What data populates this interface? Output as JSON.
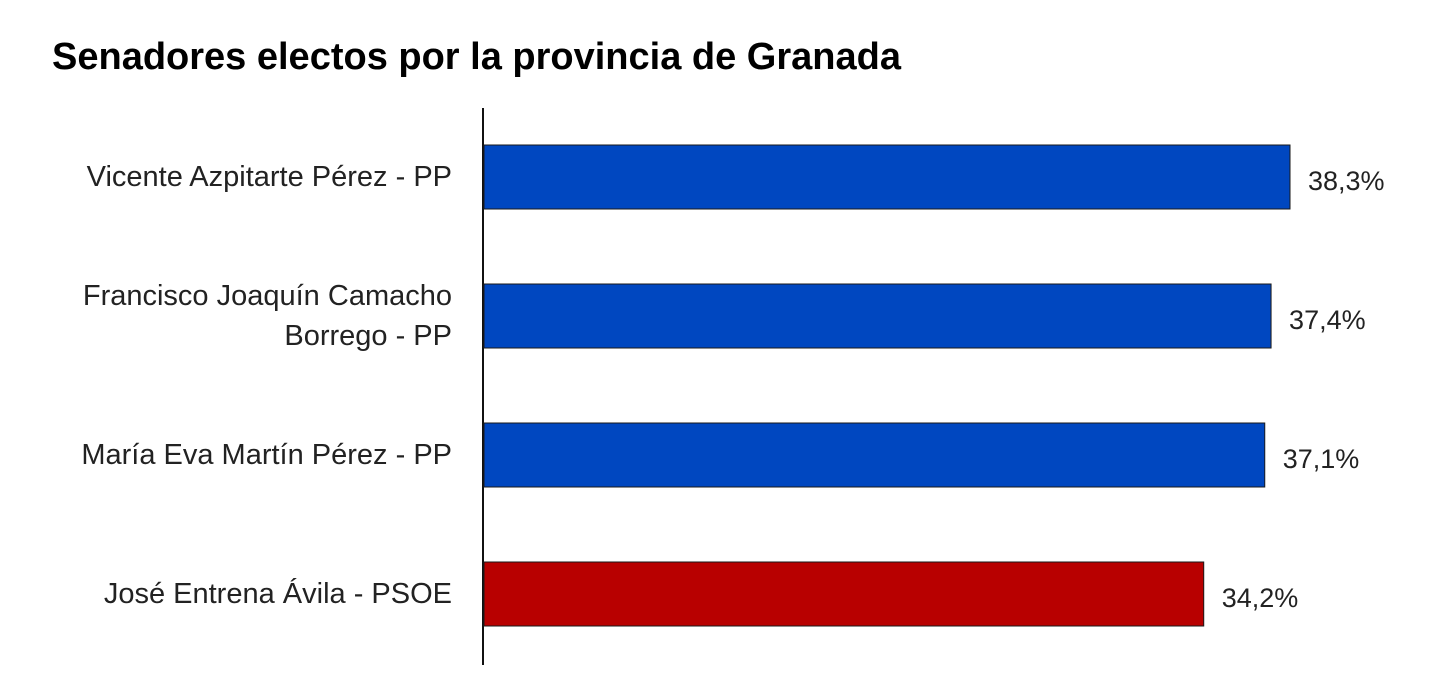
{
  "chart_data": {
    "type": "barh",
    "title": "Senadores electos por la provincia de Granada",
    "categories": [
      "Vicente Azpitarte Pérez - PP",
      "Francisco Joaquín Camacho Borrego - PP",
      "María Eva Martín Pérez - PP",
      "José Entrena Ávila - PSOE"
    ],
    "values": [
      38.3,
      37.4,
      37.1,
      34.2
    ],
    "value_labels": [
      "38,3%",
      "37,4%",
      "37,1%",
      "34,2%"
    ],
    "colors": [
      "#0047c0",
      "#0047c0",
      "#0047c0",
      "#b80000"
    ],
    "xlim": [
      0,
      45
    ]
  }
}
